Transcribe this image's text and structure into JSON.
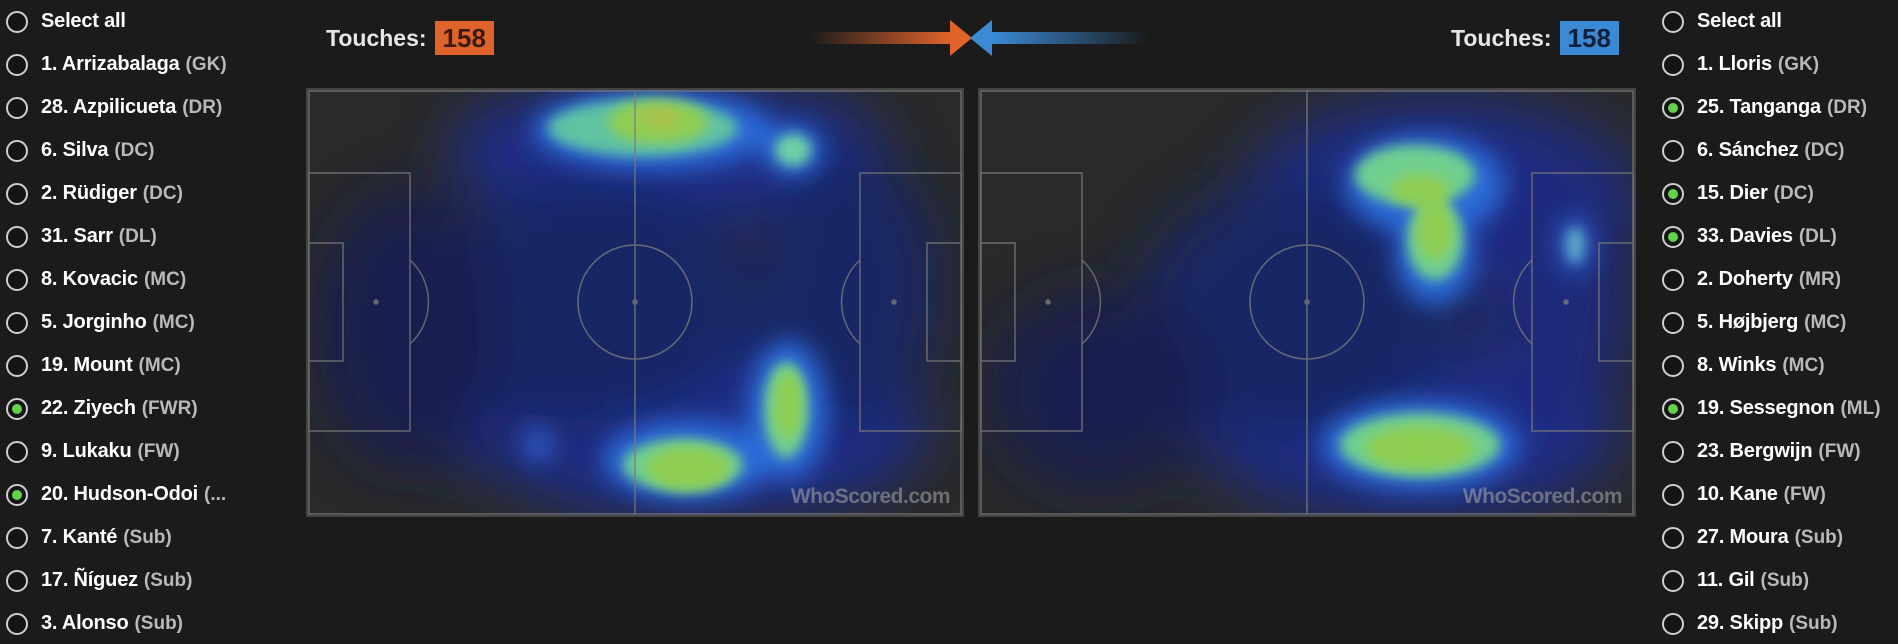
{
  "home": {
    "select_all": "Select all",
    "touches_label": "Touches:",
    "touches_value": "158",
    "accent_color": "#e0632a",
    "watermark": "WhoScored.com",
    "players": [
      {
        "name": "1. Arrizabalaga",
        "pos": "(GK)",
        "selected": false
      },
      {
        "name": "28. Azpilicueta",
        "pos": "(DR)",
        "selected": false
      },
      {
        "name": "6. Silva",
        "pos": "(DC)",
        "selected": false
      },
      {
        "name": "2. Rüdiger",
        "pos": "(DC)",
        "selected": false
      },
      {
        "name": "31. Sarr",
        "pos": "(DL)",
        "selected": false
      },
      {
        "name": "8. Kovacic",
        "pos": "(MC)",
        "selected": false
      },
      {
        "name": "5. Jorginho",
        "pos": "(MC)",
        "selected": false
      },
      {
        "name": "19. Mount",
        "pos": "(MC)",
        "selected": false
      },
      {
        "name": "22. Ziyech",
        "pos": "(FWR)",
        "selected": true
      },
      {
        "name": "9. Lukaku",
        "pos": "(FW)",
        "selected": false
      },
      {
        "name": "20. Hudson-Odoi",
        "pos": "(...",
        "selected": true
      },
      {
        "name": "7. Kanté",
        "pos": "(Sub)",
        "selected": false
      },
      {
        "name": "17. Ñíguez",
        "pos": "(Sub)",
        "selected": false
      },
      {
        "name": "3. Alonso",
        "pos": "(Sub)",
        "selected": false
      }
    ]
  },
  "away": {
    "select_all": "Select all",
    "touches_label": "Touches:",
    "touches_value": "158",
    "accent_color": "#3a8ad6",
    "watermark": "WhoScored.com",
    "players": [
      {
        "name": "1. Lloris",
        "pos": "(GK)",
        "selected": false
      },
      {
        "name": "25. Tanganga",
        "pos": "(DR)",
        "selected": true
      },
      {
        "name": "6. Sánchez",
        "pos": "(DC)",
        "selected": false
      },
      {
        "name": "15. Dier",
        "pos": "(DC)",
        "selected": true
      },
      {
        "name": "33. Davies",
        "pos": "(DL)",
        "selected": true
      },
      {
        "name": "2. Doherty",
        "pos": "(MR)",
        "selected": false
      },
      {
        "name": "5. Højbjerg",
        "pos": "(MC)",
        "selected": false
      },
      {
        "name": "8. Winks",
        "pos": "(MC)",
        "selected": false
      },
      {
        "name": "19. Sessegnon",
        "pos": "(ML)",
        "selected": true
      },
      {
        "name": "23. Bergwijn",
        "pos": "(FW)",
        "selected": false
      },
      {
        "name": "10. Kane",
        "pos": "(FW)",
        "selected": false
      },
      {
        "name": "27. Moura",
        "pos": "(Sub)",
        "selected": false
      },
      {
        "name": "11. Gil",
        "pos": "(Sub)",
        "selected": false
      },
      {
        "name": "29. Skipp",
        "pos": "(Sub)",
        "selected": false
      }
    ]
  },
  "direction_icons": [
    "arrow-right-icon",
    "arrow-left-icon"
  ]
}
